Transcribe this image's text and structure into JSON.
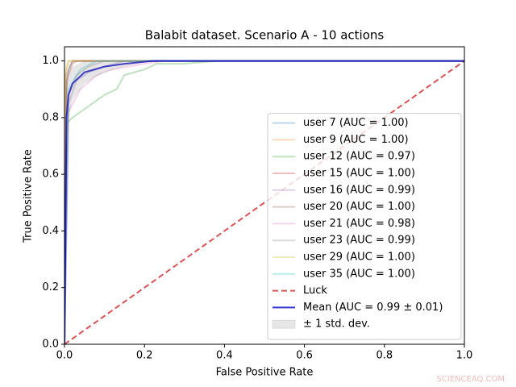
{
  "chart_data": {
    "type": "line",
    "title": "Balabit dataset. Scenario A  - 10 actions",
    "xlabel": "False Positive Rate",
    "ylabel": "True Positive Rate",
    "watermark": "SCIENCEAQ.COM",
    "xlim": [
      0,
      1
    ],
    "ylim": [
      0,
      1.05
    ],
    "xticks": [
      {
        "value": 0,
        "label": "0.0"
      },
      {
        "value": 0.2,
        "label": "0.2"
      },
      {
        "value": 0.4,
        "label": "0.4"
      },
      {
        "value": 0.6,
        "label": "0.6"
      },
      {
        "value": 0.8,
        "label": "0.8"
      },
      {
        "value": 1,
        "label": "1.0"
      }
    ],
    "yticks": [
      {
        "value": 0,
        "label": "0.0"
      },
      {
        "value": 0.2,
        "label": "0.2"
      },
      {
        "value": 0.4,
        "label": "0.4"
      },
      {
        "value": 0.6,
        "label": "0.6"
      },
      {
        "value": 0.8,
        "label": "0.8"
      },
      {
        "value": 1,
        "label": "1.0"
      }
    ],
    "legend": "lower right",
    "series": [
      {
        "name": "user 7 (AUC = 1.00)",
        "color": "#1f77b4",
        "opacity": 0.3,
        "x": [
          0,
          0.005,
          0.01,
          0.02,
          1
        ],
        "values": [
          0,
          0.9,
          0.97,
          1,
          1
        ]
      },
      {
        "name": "user 9 (AUC = 1.00)",
        "color": "#ff7f0e",
        "opacity": 0.3,
        "x": [
          0,
          0.003,
          0.01,
          1
        ],
        "values": [
          0,
          0.95,
          1,
          1
        ]
      },
      {
        "name": "user 12 (AUC = 0.97)",
        "color": "#2ca02c",
        "opacity": 0.3,
        "x": [
          0,
          0.005,
          0.02,
          0.05,
          0.08,
          0.1,
          0.13,
          0.15,
          0.2,
          0.23,
          0.3,
          0.38,
          1
        ],
        "values": [
          0,
          0.78,
          0.8,
          0.83,
          0.86,
          0.88,
          0.9,
          0.95,
          0.97,
          0.99,
          0.99,
          1,
          1
        ]
      },
      {
        "name": "user 15 (AUC = 1.00)",
        "color": "#d62728",
        "opacity": 0.3,
        "x": [
          0,
          0.005,
          0.02,
          0.03,
          1
        ],
        "values": [
          0,
          0.93,
          0.99,
          1,
          1
        ]
      },
      {
        "name": "user 16 (AUC = 0.99)",
        "color": "#9467bd",
        "opacity": 0.3,
        "x": [
          0,
          0.01,
          0.03,
          0.06,
          0.1,
          0.15,
          1
        ],
        "values": [
          0,
          0.85,
          0.93,
          0.96,
          0.98,
          1,
          1
        ]
      },
      {
        "name": "user 20 (AUC = 1.00)",
        "color": "#8c564b",
        "opacity": 0.3,
        "x": [
          0,
          0.005,
          0.02,
          1
        ],
        "values": [
          0,
          0.95,
          1,
          1
        ]
      },
      {
        "name": "user 21 (AUC = 0.98)",
        "color": "#e377c2",
        "opacity": 0.3,
        "x": [
          0,
          0.01,
          0.04,
          0.08,
          0.12,
          0.2,
          0.25,
          1
        ],
        "values": [
          0,
          0.82,
          0.9,
          0.95,
          0.97,
          0.99,
          1,
          1
        ]
      },
      {
        "name": "user 23 (AUC = 0.99)",
        "color": "#7f7f7f",
        "opacity": 0.3,
        "x": [
          0,
          0.01,
          0.03,
          0.06,
          0.1,
          1
        ],
        "values": [
          0,
          0.88,
          0.95,
          0.98,
          1,
          1
        ]
      },
      {
        "name": "user 29 (AUC = 1.00)",
        "color": "#bcbd22",
        "opacity": 0.3,
        "x": [
          0,
          0.003,
          0.01,
          1
        ],
        "values": [
          0,
          0.97,
          1,
          1
        ]
      },
      {
        "name": "user 35 (AUC = 1.00)",
        "color": "#17becf",
        "opacity": 0.3,
        "x": [
          0,
          0.01,
          0.04,
          0.08,
          1
        ],
        "values": [
          0,
          0.9,
          0.97,
          1,
          1
        ]
      },
      {
        "name": "Luck",
        "color": "#d62728",
        "opacity": 0.8,
        "dashed": true,
        "x": [
          0,
          1
        ],
        "values": [
          0,
          1
        ]
      },
      {
        "name": "Mean (AUC = 0.99 ± 0.01)",
        "color": "#0000cd",
        "opacity": 0.8,
        "width": 2,
        "x": [
          0,
          0.005,
          0.01,
          0.02,
          0.05,
          0.1,
          0.15,
          0.22,
          1
        ],
        "values": [
          0,
          0.8,
          0.88,
          0.92,
          0.96,
          0.98,
          0.99,
          1,
          1
        ]
      },
      {
        "name": "± 1 std. dev.",
        "color": "#808080",
        "opacity": 0.2,
        "band": true,
        "x": [
          0,
          0.005,
          0.01,
          0.02,
          0.05,
          0.1,
          0.15,
          0.22,
          1
        ],
        "lower": [
          0,
          0.7,
          0.8,
          0.86,
          0.92,
          0.96,
          0.98,
          1,
          1
        ],
        "upper": [
          0,
          0.9,
          0.96,
          0.98,
          1,
          1,
          1,
          1,
          1
        ]
      }
    ]
  }
}
